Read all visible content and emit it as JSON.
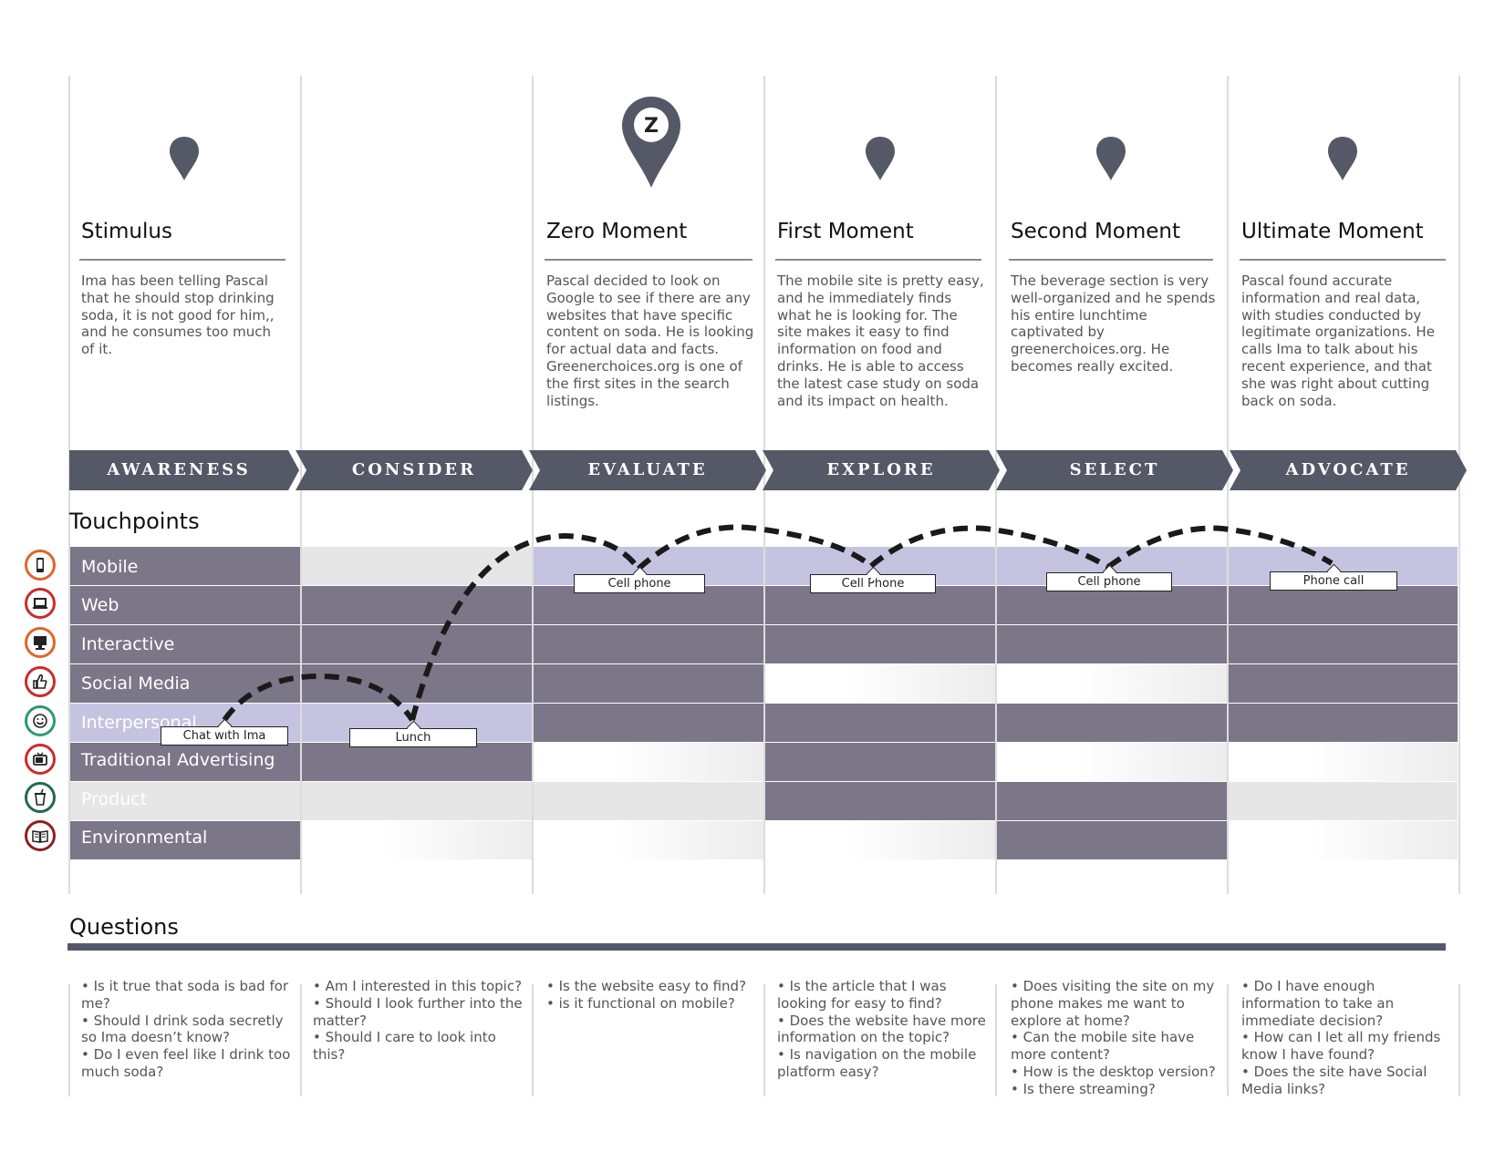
{
  "stages": [
    {
      "title": "Stimulus",
      "description": "Ima has been telling Pascal that he should stop drinking soda, it is not good for him,, and he consumes too much of it."
    },
    {
      "title": "",
      "description": ""
    },
    {
      "title": "Zero Moment",
      "description": "Pascal decided to look on Google to see if there are any websites that have specific content on soda. He is looking for actual data and facts. Greenerchoices.org is one of the first sites in the search listings.",
      "pin_letter": "Z"
    },
    {
      "title": "First Moment",
      "description": "The mobile site is pretty easy, and he immediately finds what he is looking for. The site makes it easy to find information on food and drinks. He is able to access the latest case study on soda and its impact on health."
    },
    {
      "title": "Second Moment",
      "description": "The beverage section is very well-organized and he spends his entire lunchtime captivated by greenerchoices.org. He becomes really excited."
    },
    {
      "title": "Ultimate Moment",
      "description": "Pascal found accurate information and real data, with studies conducted by legitimate organizations. He calls Ima to talk about his recent experience, and that she was right about cutting back on soda."
    }
  ],
  "phases": [
    "AWARENESS",
    "CONSIDER",
    "EVALUATE",
    "EXPLORE",
    "SELECT",
    "ADVOCATE"
  ],
  "touchpoints": {
    "title": "Touchpoints",
    "rows": [
      {
        "label": "Mobile",
        "icon": "mobile-phone-icon",
        "color": "#e0662a",
        "cells": [
          "dark",
          "grey",
          "light",
          "light",
          "light",
          "light"
        ]
      },
      {
        "label": "Web",
        "icon": "laptop-icon",
        "color": "#cc2b2b",
        "cells": [
          "dark",
          "dark",
          "dark",
          "dark",
          "dark",
          "dark"
        ]
      },
      {
        "label": "Interactive",
        "icon": "kiosk-icon",
        "color": "#e0662a",
        "cells": [
          "dark",
          "dark",
          "dark",
          "dark",
          "dark",
          "dark"
        ]
      },
      {
        "label": "Social Media",
        "icon": "thumbs-up-icon",
        "color": "#cc2b2b",
        "cells": [
          "dark",
          "dark",
          "dark",
          "fade",
          "fade",
          "dark"
        ]
      },
      {
        "label": "Interpersonal",
        "icon": "smiley-icon",
        "color": "#2e9a6e",
        "cells": [
          "light",
          "light",
          "dark",
          "dark",
          "dark",
          "dark"
        ]
      },
      {
        "label": "Traditional Advertising",
        "icon": "tv-icon",
        "color": "#cc2b2b",
        "cells": [
          "dark",
          "dark",
          "fade",
          "dark",
          "fade",
          "fade"
        ]
      },
      {
        "label": "Product",
        "icon": "soda-cup-icon",
        "color": "#1f6b4e",
        "cells": [
          "grey",
          "grey",
          "grey",
          "dark",
          "dark",
          "grey"
        ]
      },
      {
        "label": "Environmental",
        "icon": "book-icon",
        "color": "#8e1f1f",
        "cells": [
          "dark",
          "fade",
          "fade",
          "fade",
          "dark",
          "fade"
        ]
      }
    ],
    "tags": [
      "Chat with Ima",
      "Lunch",
      "Cell phone",
      "Cell Phone",
      "Cell phone",
      "Phone call"
    ]
  },
  "questions": {
    "title": "Questions",
    "columns": [
      [
        "• Is it true that soda is bad for me?",
        "• Should I drink soda secretly so Ima doesn’t know?",
        "• Do I even feel like I drink too much soda?"
      ],
      [
        "• Am I interested in this topic?",
        "• Should I look further into the matter?",
        "• Should I care to look into this?"
      ],
      [
        "• Is the website easy to find?",
        "• is it functional on mobile?"
      ],
      [
        "• Is the article that I was looking for easy to find?",
        "• Does the website have more information on the topic?",
        "• Is navigation on the mobile platform easy?"
      ],
      [
        "• Does visiting the site on my phone makes me want to explore at home?",
        "• Can the mobile site have more content?",
        "• How is the desktop version?",
        "• Is there streaming?"
      ],
      [
        "• Do I have enough information to take an immediate decision?",
        "• How can I let all my friends know I have found?",
        "• Does the site have Social Media links?"
      ]
    ]
  },
  "colors": {
    "phase_bar": "#555866",
    "cell_dark": "#7c7689",
    "cell_light": "#c5c4e0",
    "cell_grey": "#e6e6e6",
    "pin": "#555866"
  }
}
